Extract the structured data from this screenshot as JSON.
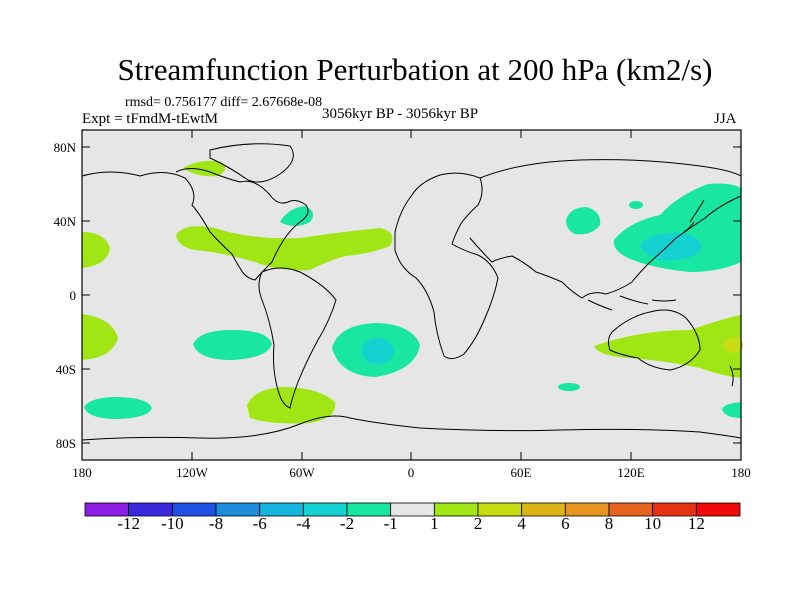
{
  "title": "Streamfunction Perturbation at 200 hPa (km2/s)",
  "stats": "rmsd= 0.756177 diff= 2.67668e-08",
  "experiment": "Expt = tFmdM-tEwtM",
  "period": "3056kyr BP - 3056kyr BP",
  "season": "JJA",
  "lat_labels": [
    "80N",
    "40N",
    "0",
    "40S",
    "80S"
  ],
  "lon_labels": [
    "180",
    "120W",
    "60W",
    "0",
    "60E",
    "120E",
    "180"
  ],
  "colorbar": {
    "labels": [
      "-12",
      "-10",
      "-8",
      "-6",
      "-4",
      "-2",
      "-1",
      "1",
      "2",
      "4",
      "6",
      "8",
      "10",
      "12"
    ],
    "colors": [
      "#8c1ee6",
      "#3c28dc",
      "#1e50e6",
      "#1e8cdc",
      "#14b4dc",
      "#14d2d2",
      "#19e6a0",
      "#e6e6e6",
      "#a0e614",
      "#c8dc14",
      "#dcb414",
      "#e6961e",
      "#e6641e",
      "#e63214",
      "#f00a0a"
    ]
  },
  "colors": {
    "background": "#e6e6e6",
    "positive_1_2": "#a0e614",
    "negative_1_2": "#19e6a0",
    "negative_2_4": "#14d2d2",
    "positive_2_4": "#c8dc14"
  }
}
